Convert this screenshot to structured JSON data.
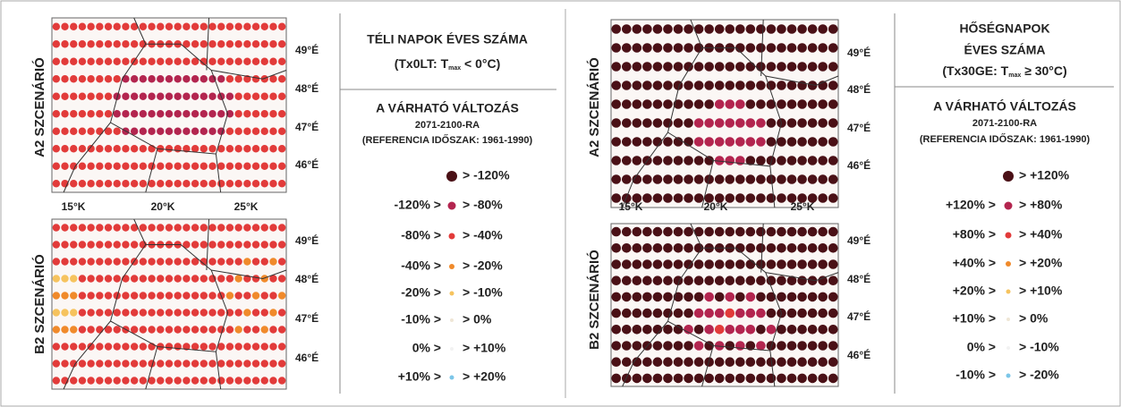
{
  "panels": [
    {
      "scenario_labels": [
        "A2 SZCENÁRIÓ",
        "B2 SZCENÁRIÓ"
      ],
      "lat_labels": [
        "49°É",
        "48°É",
        "47°É",
        "46°É"
      ],
      "lon_labels": [
        "15°K",
        "20°K",
        "25°K"
      ],
      "title": [
        "TÉLI NAPOK ÉVES SZÁMA"
      ],
      "index": {
        "prefix": "(Tx0LT:  T",
        "sub": "max",
        "suffix": " < 0°C)"
      },
      "change_title": "A VÁRHATÓ VÁLTOZÁS",
      "period": "2071-2100-RA",
      "reference": "(REFERENCIA IDŐSZAK: 1961-1990)",
      "legend": [
        {
          "to": "> -120%",
          "color": "#4a1016"
        },
        {
          "from": "-120% >",
          "to": "> -80%",
          "color": "#b3254f"
        },
        {
          "from": "-80% >",
          "to": "> -40%",
          "color": "#e23b3a"
        },
        {
          "from": "-40% >",
          "to": "> -20%",
          "color": "#f08a2b"
        },
        {
          "from": "-20% >",
          "to": "> -10%",
          "color": "#f6c35e"
        },
        {
          "from": "-10% >",
          "to": "> 0%",
          "color": "#efe6d6"
        },
        {
          "from": "0% >",
          "to": "> +10%",
          "color": "#f2f2f2"
        },
        {
          "from": "+10% >",
          "to": "> +20%",
          "color": "#7cc6e8"
        }
      ]
    },
    {
      "scenario_labels": [
        "A2 SZCENÁRIÓ",
        "B2 SZCENÁRIÓ"
      ],
      "lat_labels": [
        "49°É",
        "48°É",
        "47°É",
        "46°É"
      ],
      "lon_labels": [
        "15°K",
        "20°K",
        "25°K"
      ],
      "title": [
        "HŐSÉGNAPOK",
        "ÉVES SZÁMA"
      ],
      "index": {
        "prefix": "(Tx30GE:  T",
        "sub": "max",
        "suffix": " ≥ 30°C)"
      },
      "change_title": "A VÁRHATÓ VÁLTOZÁS",
      "period": "2071-2100-RA",
      "reference": "(REFERENCIA IDŐSZAK: 1961-1990)",
      "legend": [
        {
          "to": "> +120%",
          "color": "#4a1016"
        },
        {
          "from": "+120% >",
          "to": "> +80%",
          "color": "#b3254f"
        },
        {
          "from": "+80% >",
          "to": "> +40%",
          "color": "#e23b3a"
        },
        {
          "from": "+40% >",
          "to": "> +20%",
          "color": "#f08a2b"
        },
        {
          "from": "+20% >",
          "to": "> +10%",
          "color": "#f6c35e"
        },
        {
          "from": "+10% >",
          "to": "> 0%",
          "color": "#efe6d6"
        },
        {
          "from": "0% >",
          "to": "> -10%",
          "color": "#f2f2f2"
        },
        {
          "from": "-10% >",
          "to": "> -20%",
          "color": "#7cc6e8"
        }
      ]
    }
  ]
}
